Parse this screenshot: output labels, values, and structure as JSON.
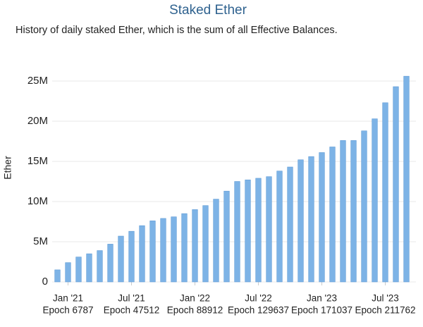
{
  "chart_data": {
    "type": "bar",
    "title": "Staked Ether",
    "subtitle": "History of daily staked Ether, which is the sum of all Effective Balances.",
    "y_label": "Ether",
    "categories": [
      null,
      "Jan '21",
      null,
      null,
      null,
      null,
      null,
      "Jul '21",
      null,
      null,
      null,
      null,
      null,
      "Jan '22",
      null,
      null,
      null,
      null,
      null,
      "Jul '22",
      null,
      null,
      null,
      null,
      null,
      "Jan '23",
      null,
      null,
      null,
      null,
      null,
      "Jul '23",
      null,
      null
    ],
    "epoch_labels": [
      null,
      "Epoch 6787",
      null,
      null,
      null,
      null,
      null,
      "Epoch 47512",
      null,
      null,
      null,
      null,
      null,
      "Epoch 88912",
      null,
      null,
      null,
      null,
      null,
      "Epoch 129637",
      null,
      null,
      null,
      null,
      null,
      "Epoch 171037",
      null,
      null,
      null,
      null,
      null,
      "Epoch 211762",
      null,
      null
    ],
    "values": [
      1500000,
      2400000,
      3100000,
      3500000,
      3900000,
      4700000,
      5700000,
      6300000,
      7000000,
      7600000,
      7900000,
      8100000,
      8500000,
      9000000,
      9500000,
      10300000,
      11300000,
      12500000,
      12700000,
      12900000,
      13100000,
      13800000,
      14300000,
      15200000,
      15600000,
      16100000,
      16800000,
      17600000,
      17600000,
      18800000,
      20300000,
      22300000,
      24300000,
      25600000
    ],
    "color": "#7db3e6",
    "ylim": [
      0,
      30000000
    ],
    "yticks": [
      {
        "value": 0,
        "label": "0"
      },
      {
        "value": 5000000,
        "label": "5M"
      },
      {
        "value": 10000000,
        "label": "10M"
      },
      {
        "value": 15000000,
        "label": "15M"
      },
      {
        "value": 20000000,
        "label": "20M"
      },
      {
        "value": 25000000,
        "label": "25M"
      }
    ],
    "grid": true
  }
}
